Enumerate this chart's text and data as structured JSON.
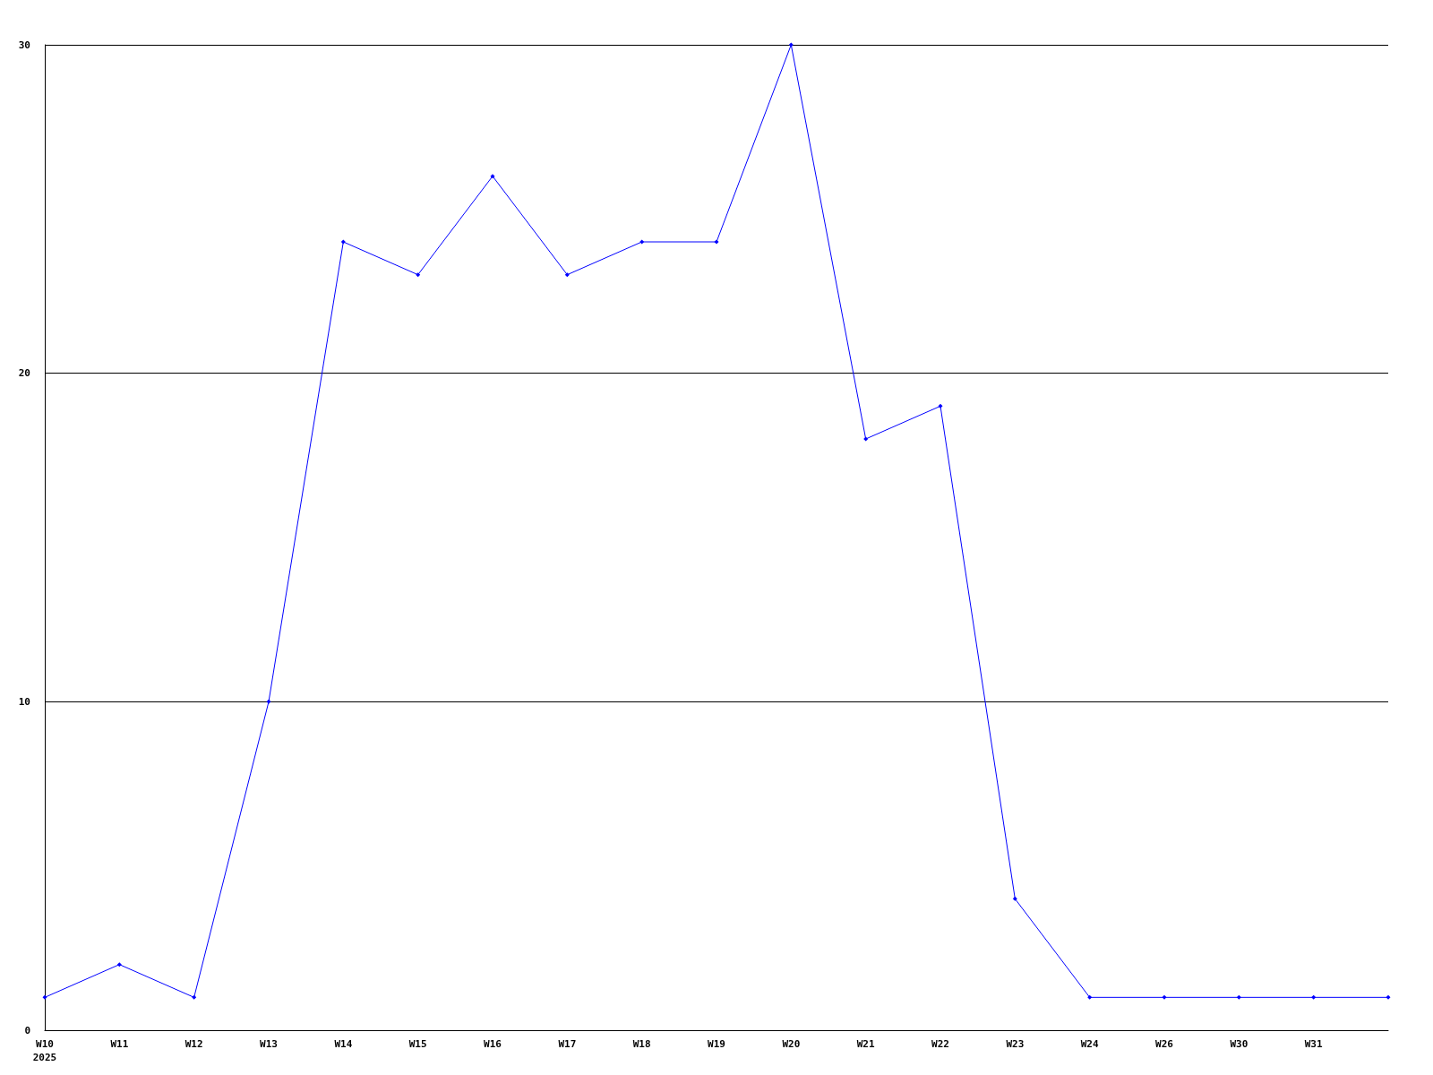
{
  "chart_data": {
    "type": "line",
    "categories": [
      "W10\n2025",
      "W11",
      "W12",
      "W13",
      "W14",
      "W15",
      "W16",
      "W17",
      "W18",
      "W19",
      "W20",
      "W21",
      "W22",
      "W23",
      "W24",
      "W26",
      "W30",
      "W31",
      null
    ],
    "series": [
      {
        "color": "#0000ff",
        "values": [
          1,
          2,
          1,
          10,
          24,
          23,
          26,
          23,
          24,
          24,
          30,
          18,
          19,
          4,
          1,
          1,
          1,
          1,
          1
        ]
      }
    ],
    "ylim": [
      0,
      30
    ],
    "yticks": [
      0,
      10,
      20,
      30
    ],
    "grid": "y",
    "marker": "diamond",
    "line_style": "solid"
  }
}
